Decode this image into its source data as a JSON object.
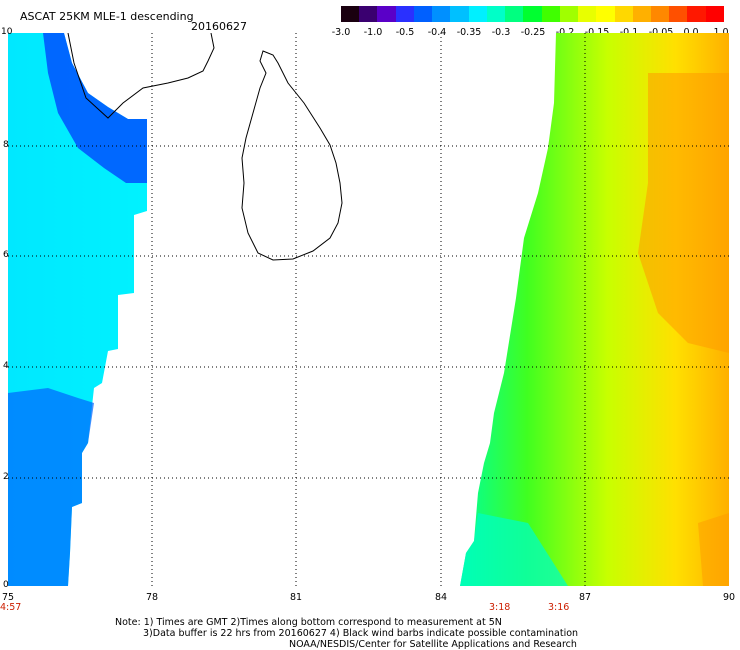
{
  "header": {
    "title": "ASCAT 25KM MLE-1 descending",
    "date": "20160627"
  },
  "colorbar": {
    "labels": [
      "-3.0",
      "-1.0",
      "-0.5",
      "-0.4",
      "-0.35",
      "-0.3",
      "-0.25",
      "-0.2",
      "-0.15",
      "-0.1",
      "-0.05",
      "0.0",
      "1.0"
    ],
    "colors": [
      "#1a0010",
      "#3a0070",
      "#5a00c8",
      "#2a30ff",
      "#0060ff",
      "#0090ff",
      "#00c0ff",
      "#00f0ff",
      "#00ffc8",
      "#00ff80",
      "#00ff30",
      "#40ff00",
      "#a0ff00",
      "#e8ff00",
      "#ffff00",
      "#ffd800",
      "#ffb000",
      "#ff8800",
      "#ff5000",
      "#ff1800",
      "#ff0000"
    ]
  },
  "axes": {
    "y_ticks": [
      "0",
      "2",
      "4",
      "6",
      "8",
      "10"
    ],
    "x_ticks": [
      "75",
      "78",
      "81",
      "84",
      "87",
      "90"
    ]
  },
  "times": [
    "4:57",
    "3:18",
    "3:16"
  ],
  "notes": {
    "line1": "Note: 1) Times are GMT 2)Times along bottom correspond to measurement at 5N",
    "line2": "3)Data buffer is 22 hrs from 20160627 4) Black wind barbs indicate possible contamination",
    "line3": "NOAA/NESDIS/Center for Satellite Applications and Research"
  }
}
